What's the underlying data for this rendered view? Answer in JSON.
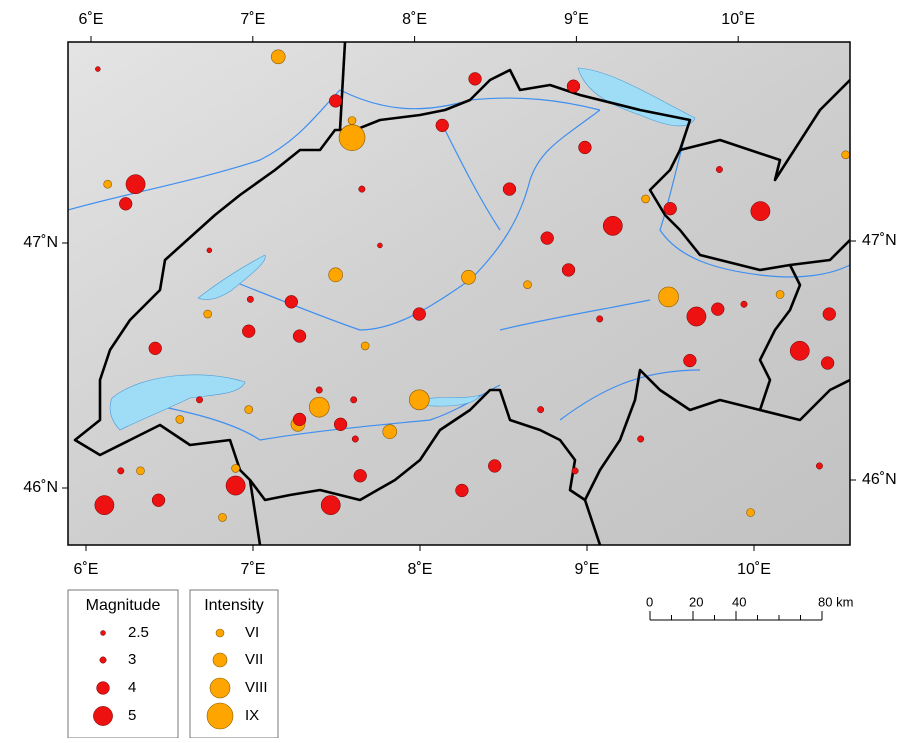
{
  "map": {
    "lon_ticks": [
      {
        "value": 6,
        "label": "6˚E"
      },
      {
        "value": 7,
        "label": "7˚E"
      },
      {
        "value": 8,
        "label": "8˚E"
      },
      {
        "value": 9,
        "label": "9˚E"
      },
      {
        "value": 10,
        "label": "10˚E"
      }
    ],
    "lat_ticks": [
      {
        "value": 47,
        "label": "47˚N"
      },
      {
        "value": 46,
        "label": "46˚N"
      }
    ],
    "magnitude_legend": {
      "title": "Magnitude",
      "values": [
        2.5,
        3,
        4,
        5
      ],
      "color": "#ee1111"
    },
    "intensity_legend": {
      "title": "Intensity",
      "labels": [
        "VI",
        "VII",
        "VIII",
        "IX"
      ],
      "color": "#ffa500"
    },
    "scale_bar": {
      "ticks": [
        0,
        20,
        40,
        {
          "value": 80,
          "label": "80 km"
        }
      ]
    },
    "quakes": [
      {
        "lon": 6.1,
        "lat": 45.93,
        "magnitude": 5
      },
      {
        "lon": 6.29,
        "lat": 47.24,
        "magnitude": 5
      },
      {
        "lon": 6.23,
        "lat": 47.16,
        "magnitude": 4
      },
      {
        "lon": 7.51,
        "lat": 47.58,
        "magnitude": 4
      },
      {
        "lon": 8.16,
        "lat": 47.48,
        "magnitude": 4
      },
      {
        "lon": 8.96,
        "lat": 47.64,
        "magnitude": 4
      },
      {
        "lon": 9.03,
        "lat": 47.39,
        "magnitude": 4
      },
      {
        "lon": 9.2,
        "lat": 47.07,
        "magnitude": 5
      },
      {
        "lon": 8.8,
        "lat": 47.02,
        "magnitude": 4
      },
      {
        "lon": 8.93,
        "lat": 46.89,
        "magnitude": 4
      },
      {
        "lon": 9.71,
        "lat": 46.7,
        "magnitude": 5
      },
      {
        "lon": 9.84,
        "lat": 46.73,
        "magnitude": 4
      },
      {
        "lon": 10.1,
        "lat": 47.13,
        "magnitude": 5
      },
      {
        "lon": 10.34,
        "lat": 46.56,
        "magnitude": 5
      },
      {
        "lon": 10.51,
        "lat": 46.51,
        "magnitude": 4
      },
      {
        "lon": 10.52,
        "lat": 46.71,
        "magnitude": 4
      },
      {
        "lon": 7.48,
        "lat": 45.93,
        "magnitude": 5
      },
      {
        "lon": 6.43,
        "lat": 45.95,
        "magnitude": 4
      },
      {
        "lon": 6.9,
        "lat": 46.01,
        "magnitude": 5
      },
      {
        "lon": 8.48,
        "lat": 46.09,
        "magnitude": 4
      },
      {
        "lon": 8.28,
        "lat": 45.99,
        "magnitude": 4
      },
      {
        "lon": 7.66,
        "lat": 46.05,
        "magnitude": 4
      },
      {
        "lon": 7.29,
        "lat": 46.28,
        "magnitude": 4
      },
      {
        "lon": 7.54,
        "lat": 46.26,
        "magnitude": 4
      },
      {
        "lon": 7.63,
        "lat": 46.2,
        "magnitude": 3
      },
      {
        "lon": 8.02,
        "lat": 46.71,
        "magnitude": 4
      },
      {
        "lon": 7.29,
        "lat": 46.62,
        "magnitude": 4
      },
      {
        "lon": 6.98,
        "lat": 46.64,
        "magnitude": 4
      },
      {
        "lon": 6.41,
        "lat": 46.57,
        "magnitude": 4
      },
      {
        "lon": 7.24,
        "lat": 46.76,
        "magnitude": 4
      },
      {
        "lon": 8.57,
        "lat": 47.22,
        "magnitude": 4
      },
      {
        "lon": 7.67,
        "lat": 47.22,
        "magnitude": 3
      },
      {
        "lon": 8.36,
        "lat": 47.67,
        "magnitude": 4
      },
      {
        "lon": 9.55,
        "lat": 47.14,
        "magnitude": 4
      },
      {
        "lon": 10.0,
        "lat": 46.75,
        "magnitude": 3
      },
      {
        "lon": 9.67,
        "lat": 46.52,
        "magnitude": 4
      },
      {
        "lon": 6.99,
        "lat": 46.77,
        "magnitude": 3
      },
      {
        "lon": 7.41,
        "lat": 46.4,
        "magnitude": 3
      },
      {
        "lon": 7.62,
        "lat": 46.36,
        "magnitude": 3
      },
      {
        "lon": 8.76,
        "lat": 46.32,
        "magnitude": 3
      },
      {
        "lon": 9.12,
        "lat": 46.69,
        "magnitude": 3
      },
      {
        "lon": 9.37,
        "lat": 46.2,
        "magnitude": 3
      },
      {
        "lon": 6.06,
        "lat": 47.71,
        "magnitude": 2.5
      },
      {
        "lon": 6.74,
        "lat": 46.97,
        "magnitude": 2.5
      },
      {
        "lon": 7.78,
        "lat": 46.99,
        "magnitude": 2.5
      },
      {
        "lon": 6.68,
        "lat": 46.36,
        "magnitude": 3
      },
      {
        "lon": 6.2,
        "lat": 46.07,
        "magnitude": 3
      },
      {
        "lon": 8.97,
        "lat": 46.07,
        "magnitude": 3
      },
      {
        "lon": 10.46,
        "lat": 46.09,
        "magnitude": 3
      },
      {
        "lon": 9.85,
        "lat": 47.3,
        "magnitude": 3
      }
    ],
    "historic": [
      {
        "lon": 7.61,
        "lat": 47.43,
        "intensity": "IX"
      },
      {
        "lon": 8.02,
        "lat": 46.36,
        "intensity": "VIII"
      },
      {
        "lon": 7.41,
        "lat": 46.33,
        "intensity": "VIII"
      },
      {
        "lon": 9.54,
        "lat": 46.78,
        "intensity": "VIII"
      },
      {
        "lon": 7.16,
        "lat": 47.76,
        "intensity": "VII"
      },
      {
        "lon": 6.12,
        "lat": 47.24,
        "intensity": "VI"
      },
      {
        "lon": 7.28,
        "lat": 46.26,
        "intensity": "VII"
      },
      {
        "lon": 7.84,
        "lat": 46.23,
        "intensity": "VII"
      },
      {
        "lon": 8.32,
        "lat": 46.86,
        "intensity": "VII"
      },
      {
        "lon": 8.68,
        "lat": 46.83,
        "intensity": "VI"
      },
      {
        "lon": 7.51,
        "lat": 46.87,
        "intensity": "VII"
      },
      {
        "lon": 6.73,
        "lat": 46.71,
        "intensity": "VI"
      },
      {
        "lon": 6.98,
        "lat": 46.32,
        "intensity": "VI"
      },
      {
        "lon": 6.32,
        "lat": 46.07,
        "intensity": "VI"
      },
      {
        "lon": 6.82,
        "lat": 45.88,
        "intensity": "VI"
      },
      {
        "lon": 6.9,
        "lat": 46.08,
        "intensity": "VI"
      },
      {
        "lon": 7.69,
        "lat": 46.58,
        "intensity": "VI"
      },
      {
        "lon": 9.4,
        "lat": 47.18,
        "intensity": "VI"
      },
      {
        "lon": 10.22,
        "lat": 46.79,
        "intensity": "VI"
      },
      {
        "lon": 10.62,
        "lat": 47.36,
        "intensity": "VI"
      },
      {
        "lon": 10.04,
        "lat": 45.9,
        "intensity": "VI"
      },
      {
        "lon": 7.61,
        "lat": 47.5,
        "intensity": "VI"
      },
      {
        "lon": 6.56,
        "lat": 46.28,
        "intensity": "VI"
      }
    ]
  }
}
